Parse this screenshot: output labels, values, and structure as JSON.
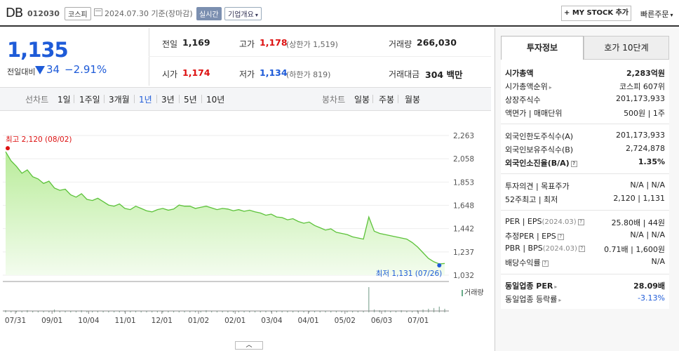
{
  "header": {
    "stock_name": "DB",
    "stock_code": "012030",
    "market": "코스피",
    "basis_date": "2024.07.30 기준(장마감)",
    "realtime": "실시간",
    "company_overview": "기업개요",
    "mystock_add": "+ MY STOCK 추가",
    "quick_order": "빠른주문"
  },
  "summary": {
    "price": "1,135",
    "vs_prev_label": "전일대비",
    "change": "34",
    "change_rate": "−2.91%",
    "prev_close_label": "전일",
    "prev_close": "1,169",
    "high_label": "고가",
    "high": "1,178",
    "upper_limit": "(상한가 1,519)",
    "volume_label": "거래량",
    "volume": "266,030",
    "open_label": "시가",
    "open": "1,174",
    "low_label": "저가",
    "low": "1,134",
    "lower_limit": "(하한가 819)",
    "amount_label": "거래대금",
    "amount": "304 백만"
  },
  "tabs": {
    "line_chart": "선차트",
    "d1": "1일",
    "w1": "1주일",
    "m3": "3개월",
    "y1": "1년",
    "y3": "3년",
    "y5": "5년",
    "y10": "10년",
    "candle_chart": "봉차트",
    "daily": "일봉",
    "weekly": "주봉",
    "monthly": "월봉",
    "active": "1년"
  },
  "chart_data": {
    "type": "area",
    "x_ticks": [
      "07/31",
      "09/01",
      "10/04",
      "11/01",
      "12/01",
      "01/02",
      "02/01",
      "03/04",
      "04/01",
      "05/02",
      "06/03",
      "07/01"
    ],
    "y_ticks": [
      "2,263",
      "2,058",
      "1,853",
      "1,648",
      "1,442",
      "1,237",
      "1,032"
    ],
    "ylim": [
      1032,
      2263
    ],
    "high_annotation": "최고 2,120 (08/02)",
    "low_annotation": "최저 1,131 (07/26)",
    "volume_label": "거래량",
    "values": [
      2120,
      2040,
      1990,
      1930,
      1960,
      1900,
      1880,
      1840,
      1860,
      1800,
      1780,
      1790,
      1740,
      1720,
      1750,
      1700,
      1690,
      1710,
      1680,
      1650,
      1640,
      1660,
      1620,
      1610,
      1640,
      1620,
      1600,
      1590,
      1610,
      1620,
      1605,
      1615,
      1650,
      1640,
      1640,
      1620,
      1630,
      1640,
      1625,
      1610,
      1620,
      1615,
      1600,
      1610,
      1595,
      1605,
      1590,
      1580,
      1560,
      1570,
      1545,
      1540,
      1520,
      1530,
      1505,
      1490,
      1500,
      1470,
      1450,
      1430,
      1440,
      1410,
      1400,
      1390,
      1370,
      1360,
      1350,
      1545,
      1420,
      1400,
      1390,
      1380,
      1370,
      1360,
      1350,
      1320,
      1280,
      1230,
      1180,
      1150,
      1131,
      1135
    ],
    "volume": [
      3,
      2,
      2,
      2,
      3,
      2,
      2,
      2,
      2,
      4,
      2,
      2,
      2,
      2,
      3,
      2,
      2,
      2,
      2,
      2,
      2,
      2,
      2,
      2,
      2,
      2,
      2,
      2,
      2,
      2,
      2,
      2,
      2,
      2,
      2,
      2,
      2,
      3,
      2,
      2,
      2,
      2,
      2,
      2,
      2,
      2,
      2,
      2,
      2,
      2,
      2,
      2,
      2,
      2,
      2,
      2,
      2,
      2,
      2,
      2,
      2,
      2,
      2,
      2,
      2,
      2,
      2,
      35,
      4,
      3,
      3,
      2,
      2,
      3,
      2,
      2,
      3,
      4,
      5,
      6,
      8,
      5
    ]
  },
  "right_panel": {
    "tab_invest_info": "투자정보",
    "tab_orderbook": "호가 10단계",
    "market_cap_label": "시가총액",
    "market_cap": "2,283억원",
    "market_cap_rank_label": "시가총액순위",
    "market_cap_rank": "코스피 607위",
    "listed_shares_label": "상장주식수",
    "listed_shares": "201,173,933",
    "face_value_label": "액면가 | 매매단위",
    "face_value": "500원 | 1주",
    "foreign_limit_label": "외국인한도주식수(A)",
    "foreign_limit": "201,173,933",
    "foreign_hold_label": "외국인보유주식수(B)",
    "foreign_hold": "2,724,878",
    "foreign_rate_label": "외국인소진율(B/A)",
    "foreign_rate": "1.35%",
    "opinion_label": "투자의견 | 목표주가",
    "opinion": "N/A | N/A",
    "w52_label": "52주최고 | 최저",
    "w52": "2,120 | 1,131",
    "per_label": "PER | EPS",
    "per_date": "(2024.03)",
    "per": "25.80배 | 44원",
    "est_per_label": "추정PER | EPS",
    "est_per": "N/A | N/A",
    "pbr_label": "PBR | BPS",
    "pbr_date": "(2024.03)",
    "pbr": "0.71배 | 1,600원",
    "dividend_label": "배당수익률",
    "dividend": "N/A",
    "ind_per_label": "동일업종 PER",
    "ind_per": "28.09배",
    "ind_rate_label": "동일업종 등락률",
    "ind_rate": "-3.13%"
  }
}
